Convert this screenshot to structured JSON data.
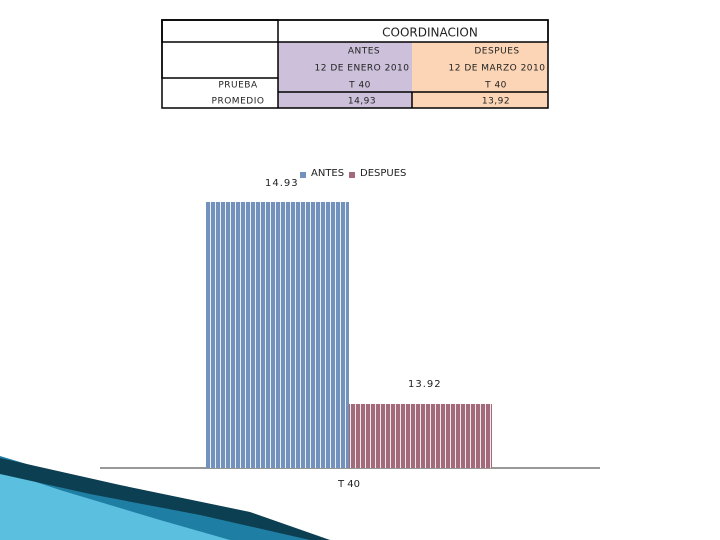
{
  "table": {
    "title": "COORDINACION",
    "columns": [
      "ANTES",
      "DESPUES"
    ],
    "dates": [
      "12 DE ENERO 2010",
      "12 DE MARZO 2010"
    ],
    "rows": [
      [
        "PRUEBA",
        "T 40",
        "T 40"
      ],
      [
        "PROMEDIO",
        "14,93",
        "13,92"
      ]
    ]
  },
  "chart_data": {
    "type": "bar",
    "categories": [
      "T 40"
    ],
    "series": [
      {
        "name": "ANTES",
        "color": "#7391bd",
        "values": [
          14.93
        ]
      },
      {
        "name": "DESPUES",
        "color": "#a26a7a",
        "values": [
          13.92
        ]
      }
    ],
    "ylim": [
      13.6,
      15.0
    ],
    "legend": "top",
    "data_labels": true
  }
}
